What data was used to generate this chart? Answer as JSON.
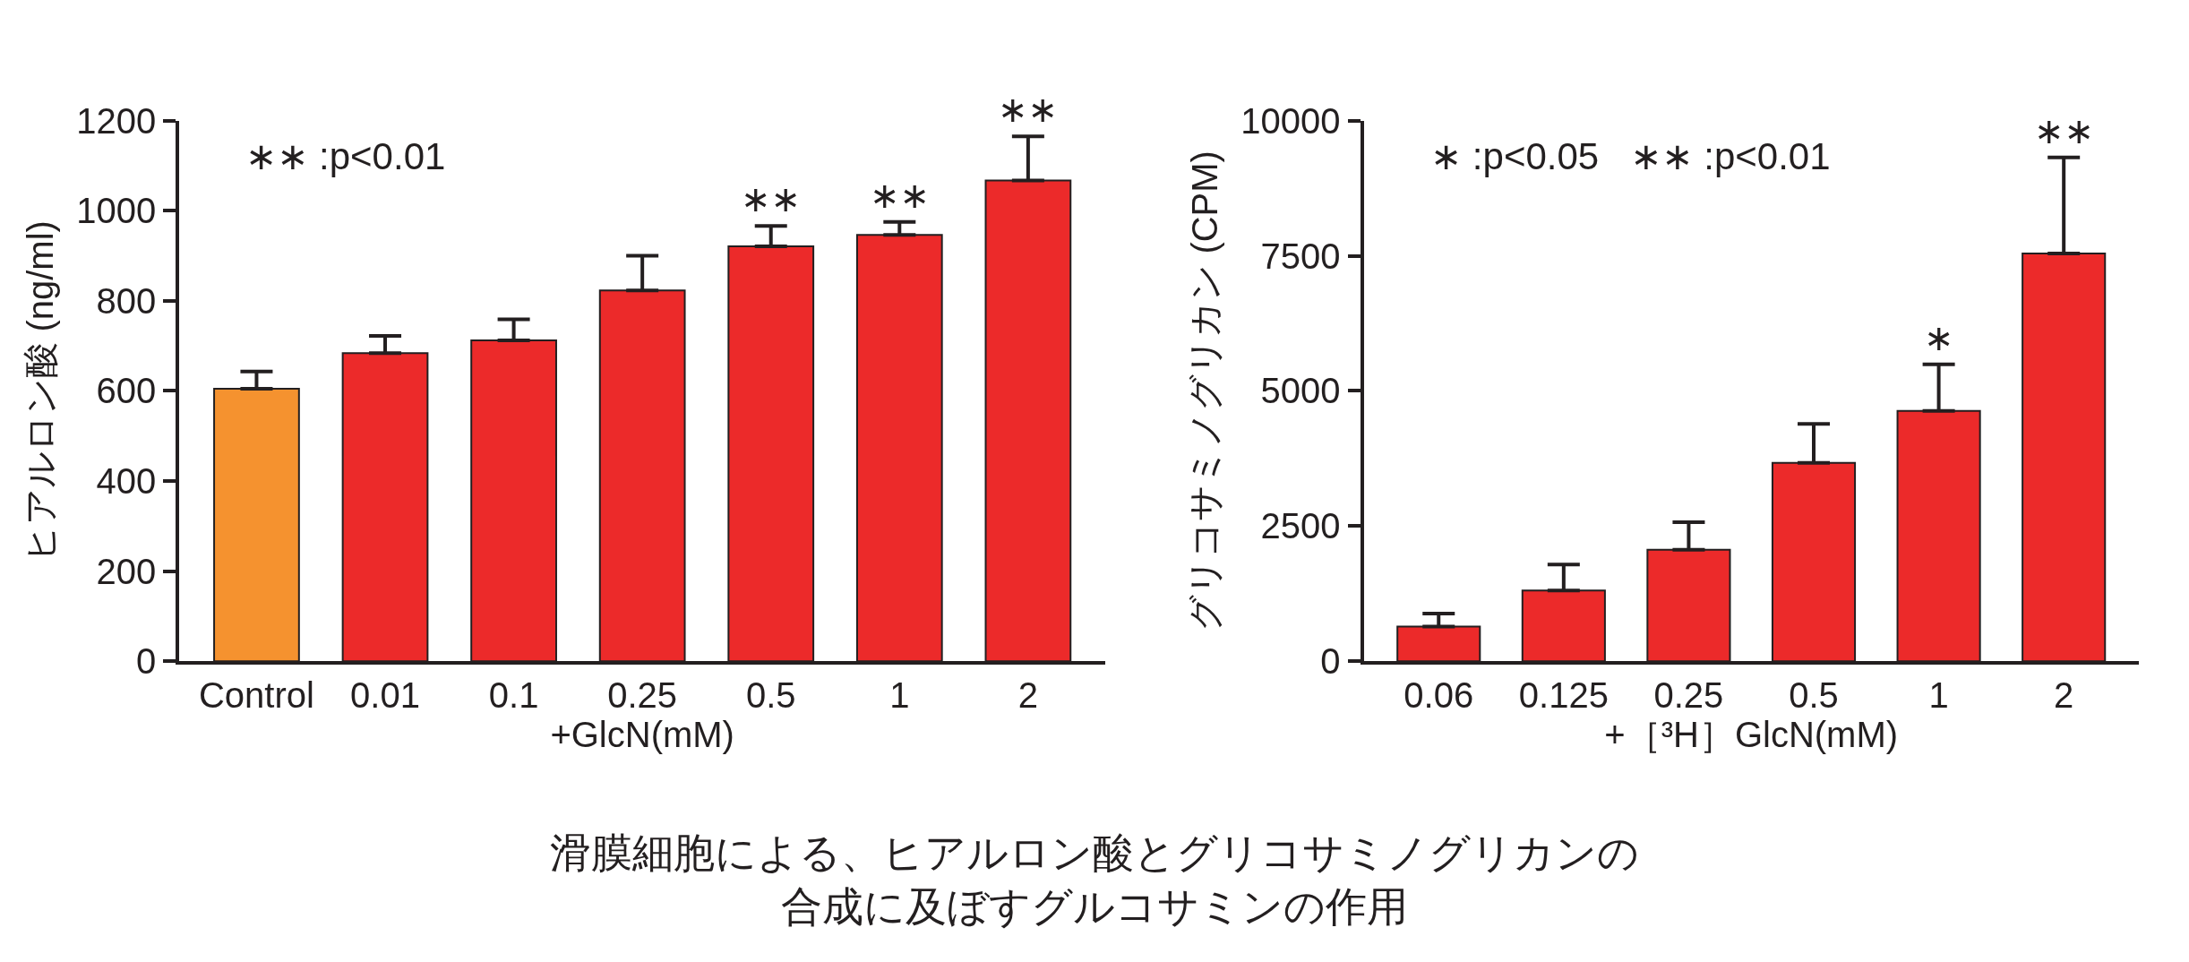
{
  "chart_data": [
    {
      "type": "bar",
      "ylabel": "ヒアルロン酸 (ng/ml)",
      "xlabel": "+GlcN(mM)",
      "categories": [
        "Control",
        "0.01",
        "0.1",
        "0.25",
        "0.5",
        "1",
        "2"
      ],
      "values": [
        605,
        684,
        712,
        823,
        921,
        946,
        1067
      ],
      "colors": [
        "#f5922f",
        "#ec2a2a",
        "#ec2a2a",
        "#ec2a2a",
        "#ec2a2a",
        "#ec2a2a",
        "#ec2a2a"
      ],
      "errors": [
        [
          605,
          643
        ],
        [
          684,
          722
        ],
        [
          712,
          759
        ],
        [
          823,
          900
        ],
        [
          921,
          966
        ],
        [
          946,
          975
        ],
        [
          1067,
          1165
        ]
      ],
      "ylim": [
        0,
        1200
      ],
      "yticks": [
        0,
        200,
        400,
        600,
        800,
        1000,
        1200
      ],
      "annotations": [
        "∗∗ :p<0.01",
        {
          "text": "∗∗",
          "x": "0.5",
          "y": 966
        },
        {
          "text": "∗∗",
          "x": "1",
          "y": 975
        },
        {
          "text": "∗∗",
          "x": "2",
          "y": 1165
        },
        "滑膜細胞による、ヒアルロン酸とグリコサミノグリカンの合成に及ぼすグルコサミンの作用"
      ]
    },
    {
      "type": "bar",
      "ylabel": "グリコサミノグリカン (CPM)",
      "xlabel": "+［³H］GlcN(mM)",
      "categories": [
        "0.06",
        "0.125",
        "0.25",
        "0.5",
        "1",
        "2"
      ],
      "values": [
        640,
        1310,
        2060,
        3670,
        4630,
        7540
      ],
      "colors": [
        "#ec2a2a",
        "#ec2a2a",
        "#ec2a2a",
        "#ec2a2a",
        "#ec2a2a",
        "#ec2a2a"
      ],
      "errors": [
        [
          640,
          880
        ],
        [
          1310,
          1790
        ],
        [
          2060,
          2570
        ],
        [
          3670,
          4390
        ],
        [
          4630,
          5490
        ],
        [
          7540,
          9320
        ]
      ],
      "ylim": [
        0,
        10000
      ],
      "yticks": [
        0,
        2500,
        5000,
        7500,
        10000
      ],
      "annotations": [
        "∗ :p<0.05   ∗∗ :p<0.01",
        {
          "text": "∗",
          "x": "1",
          "y": 5490
        },
        {
          "text": "∗∗",
          "x": "2",
          "y": 9320
        }
      ]
    }
  ]
}
